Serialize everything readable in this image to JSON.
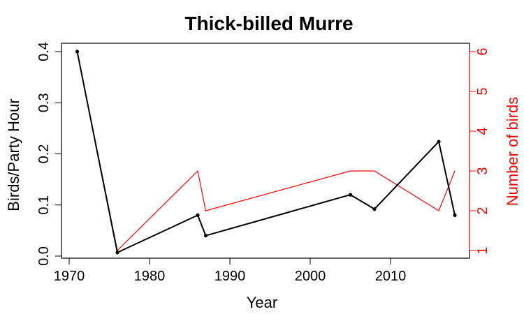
{
  "chart_data": {
    "type": "line",
    "title": "Thick-billed Murre",
    "xlabel": "Year",
    "ylabel_left": "Birds/Party Hour",
    "ylabel_right": "Number of birds",
    "xlim": [
      1970,
      2018
    ],
    "x_ticks": [
      1970,
      1980,
      1990,
      2000,
      2010
    ],
    "ylim_left": [
      0.0,
      0.4
    ],
    "y_ticks_left": [
      "0.0",
      "0.1",
      "0.2",
      "0.3",
      "0.4"
    ],
    "ylim_right": [
      1,
      6
    ],
    "y_ticks_right": [
      "1",
      "2",
      "3",
      "4",
      "5",
      "6"
    ],
    "grid": false,
    "series": [
      {
        "axis": "left",
        "color": "#000000",
        "points": true,
        "x": [
          1971,
          1976,
          1986,
          1987,
          2005,
          2008,
          2016,
          2018
        ],
        "y": [
          0.4,
          0.007,
          0.08,
          0.04,
          0.12,
          0.092,
          0.224,
          0.08
        ]
      },
      {
        "axis": "right",
        "color": "#ff0000",
        "points": false,
        "x": [
          1971,
          1976,
          1986,
          1987,
          2005,
          2008,
          2016,
          2018
        ],
        "y": [
          6,
          1,
          3,
          2,
          3,
          3,
          2,
          3
        ]
      }
    ]
  }
}
